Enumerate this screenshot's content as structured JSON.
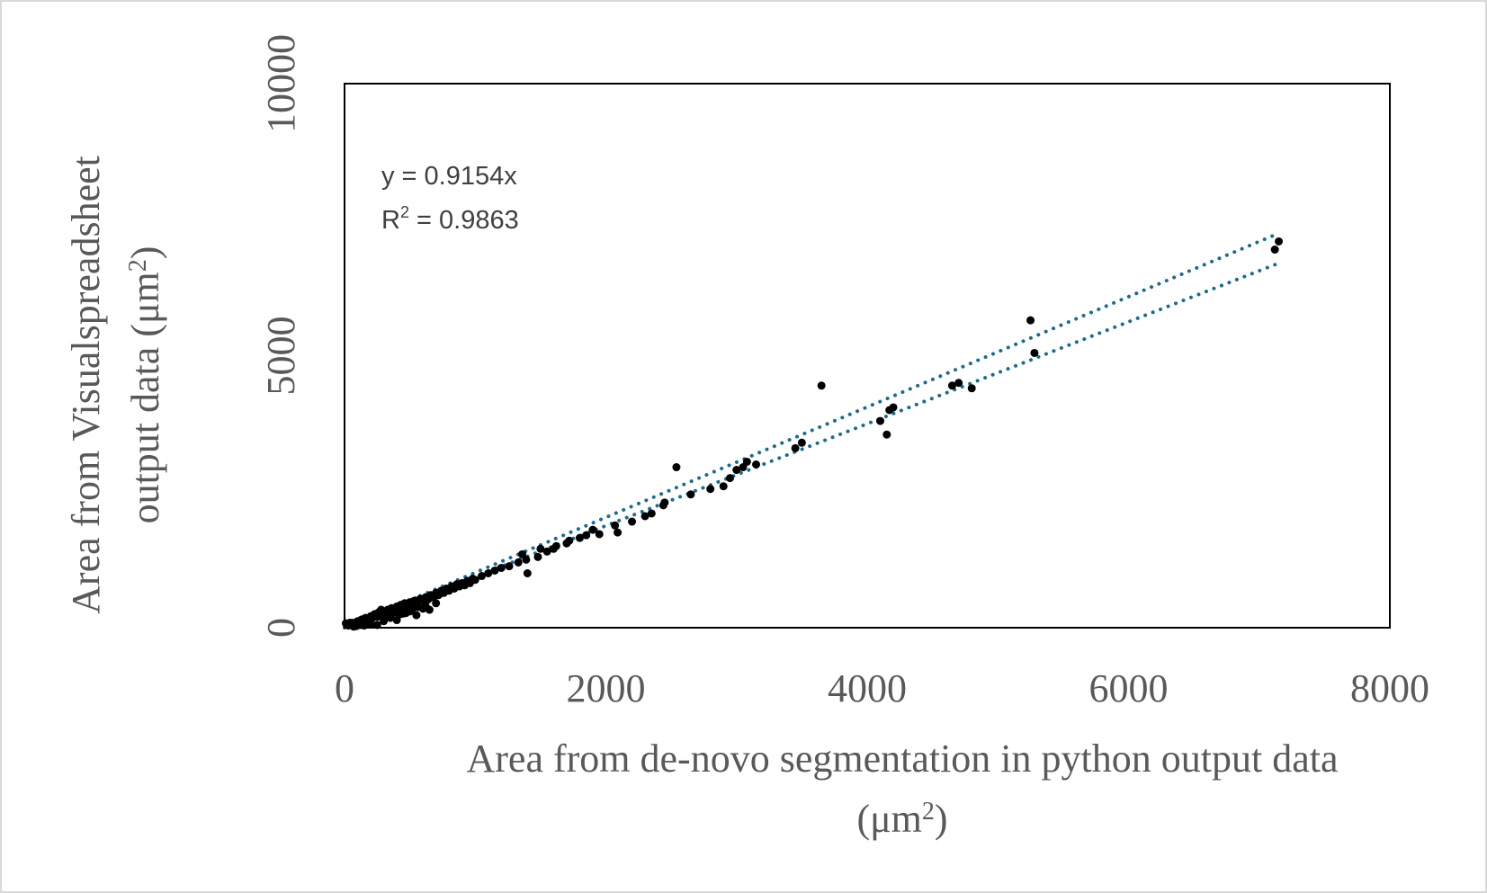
{
  "chart_data": {
    "type": "scatter",
    "xlabel": "Area from de-novo segmentation in python output data (μm²)",
    "xlabel_line1": "Area from de-novo segmentation in python output data",
    "xlabel_line2": "(μm²)",
    "ylabel": "Area from Visualspreadsheet output data (μm²)",
    "ylabel_line1": "Area from Visualspreadsheet",
    "ylabel_line2": "output data (μm²)",
    "xlim": [
      0,
      8000
    ],
    "ylim": [
      0,
      10000
    ],
    "xticks": [
      "0",
      "2000",
      "4000",
      "6000",
      "8000"
    ],
    "yticks": [
      "0",
      "5000",
      "10000"
    ],
    "grid": false,
    "legend": "none",
    "annotation": {
      "equation": "y = 0.9154x",
      "r2_label": "R",
      "r2_sup": "2",
      "r2_value": " = 0.9863"
    },
    "colors": {
      "points": "#000000",
      "trendline": "#1f6b8a",
      "frame": "#000000"
    },
    "trendlines": [
      {
        "name": "trendline-1",
        "x": [
          0,
          7150
        ],
        "y": [
          0,
          7250
        ]
      },
      {
        "name": "trendline-2",
        "x": [
          0,
          7150
        ],
        "y": [
          0,
          6700
        ]
      }
    ],
    "series": [
      {
        "values": [
          [
            10,
            80
          ],
          [
            20,
            60
          ],
          [
            30,
            40
          ],
          [
            50,
            70
          ],
          [
            60,
            90
          ],
          [
            80,
            60
          ],
          [
            100,
            120
          ],
          [
            110,
            90
          ],
          [
            130,
            150
          ],
          [
            150,
            100
          ],
          [
            160,
            180
          ],
          [
            180,
            130
          ],
          [
            200,
            210
          ],
          [
            210,
            170
          ],
          [
            230,
            250
          ],
          [
            250,
            200
          ],
          [
            260,
            280
          ],
          [
            280,
            240
          ],
          [
            300,
            300
          ],
          [
            310,
            260
          ],
          [
            330,
            330
          ],
          [
            350,
            280
          ],
          [
            360,
            360
          ],
          [
            380,
            320
          ],
          [
            400,
            390
          ],
          [
            410,
            350
          ],
          [
            430,
            420
          ],
          [
            450,
            380
          ],
          [
            460,
            450
          ],
          [
            480,
            400
          ],
          [
            500,
            470
          ],
          [
            520,
            430
          ],
          [
            540,
            500
          ],
          [
            560,
            460
          ],
          [
            580,
            530
          ],
          [
            600,
            490
          ],
          [
            620,
            560
          ],
          [
            640,
            520
          ],
          [
            660,
            600
          ],
          [
            680,
            560
          ],
          [
            700,
            640
          ],
          [
            720,
            600
          ],
          [
            740,
            680
          ],
          [
            760,
            640
          ],
          [
            780,
            720
          ],
          [
            800,
            680
          ],
          [
            820,
            760
          ],
          [
            840,
            720
          ],
          [
            860,
            800
          ],
          [
            880,
            760
          ],
          [
            900,
            820
          ],
          [
            920,
            780
          ],
          [
            940,
            860
          ],
          [
            960,
            820
          ],
          [
            980,
            900
          ],
          [
            1000,
            880
          ],
          [
            1050,
            950
          ],
          [
            1100,
            1000
          ],
          [
            1150,
            1050
          ],
          [
            1200,
            1100
          ],
          [
            250,
            50
          ],
          [
            300,
            120
          ],
          [
            350,
            180
          ],
          [
            400,
            140
          ],
          [
            450,
            260
          ],
          [
            500,
            300
          ],
          [
            550,
            230
          ],
          [
            600,
            350
          ],
          [
            650,
            330
          ],
          [
            430,
            250
          ],
          [
            200,
            60
          ],
          [
            150,
            40
          ],
          [
            120,
            50
          ],
          [
            90,
            30
          ],
          [
            70,
            20
          ],
          [
            40,
            90
          ],
          [
            280,
            330
          ],
          [
            360,
            250
          ],
          [
            480,
            330
          ],
          [
            560,
            380
          ],
          [
            470,
            270
          ],
          [
            520,
            350
          ],
          [
            400,
            280
          ],
          [
            340,
            200
          ],
          [
            620,
            400
          ],
          [
            700,
            450
          ],
          [
            1260,
            1130
          ],
          [
            1330,
            1200
          ],
          [
            1360,
            1350
          ],
          [
            1400,
            1000
          ],
          [
            1390,
            1250
          ],
          [
            1480,
            1300
          ],
          [
            1500,
            1450
          ],
          [
            1550,
            1400
          ],
          [
            1600,
            1450
          ],
          [
            1620,
            1500
          ],
          [
            1700,
            1550
          ],
          [
            1720,
            1600
          ],
          [
            1800,
            1650
          ],
          [
            1850,
            1700
          ],
          [
            1900,
            1800
          ],
          [
            1950,
            1720
          ],
          [
            2070,
            1880
          ],
          [
            2090,
            1750
          ],
          [
            2200,
            1950
          ],
          [
            2300,
            2050
          ],
          [
            2350,
            2100
          ],
          [
            2440,
            2250
          ],
          [
            2450,
            2300
          ],
          [
            2540,
            2950
          ],
          [
            2650,
            2450
          ],
          [
            2800,
            2550
          ],
          [
            2900,
            2600
          ],
          [
            2950,
            2750
          ],
          [
            3000,
            2900
          ],
          [
            3050,
            2950
          ],
          [
            3080,
            3050
          ],
          [
            3150,
            3000
          ],
          [
            3450,
            3300
          ],
          [
            3500,
            3400
          ],
          [
            3650,
            4450
          ],
          [
            4100,
            3800
          ],
          [
            4150,
            3550
          ],
          [
            4170,
            4000
          ],
          [
            4200,
            4050
          ],
          [
            4650,
            4450
          ],
          [
            4700,
            4500
          ],
          [
            4800,
            4400
          ],
          [
            5250,
            5650
          ],
          [
            5280,
            5050
          ],
          [
            7120,
            6950
          ],
          [
            7150,
            7100
          ]
        ]
      }
    ]
  }
}
